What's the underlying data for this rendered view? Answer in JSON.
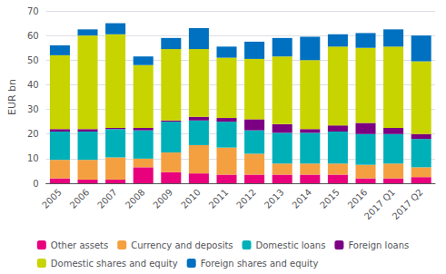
{
  "chart_data": {
    "type": "bar",
    "stacked": true,
    "categories": [
      "2005",
      "2006",
      "2007",
      "2008",
      "2009",
      "2010",
      "2011",
      "2012",
      "2013",
      "2014",
      "2015",
      "2016",
      "2017 Q1",
      "2017 Q2"
    ],
    "series": [
      {
        "name": "Other assets",
        "color": "#e8007d",
        "values": [
          2.0,
          1.5,
          1.5,
          6.5,
          4.5,
          4.0,
          3.5,
          3.5,
          3.5,
          3.5,
          3.5,
          2.0,
          2.0,
          2.5
        ]
      },
      {
        "name": "Currency and deposits",
        "color": "#f5a040",
        "values": [
          7.5,
          8.0,
          9.0,
          3.5,
          8.0,
          11.5,
          11.0,
          8.5,
          4.5,
          4.5,
          4.5,
          5.5,
          6.0,
          4.0
        ]
      },
      {
        "name": "Domestic loans",
        "color": "#00b0b9",
        "values": [
          11.5,
          11.5,
          11.5,
          11.5,
          12.5,
          10.0,
          10.5,
          9.5,
          12.5,
          12.5,
          13.0,
          12.5,
          12.0,
          11.5
        ]
      },
      {
        "name": "Foreign loans",
        "color": "#7b0082",
        "values": [
          1.0,
          1.0,
          0.5,
          1.0,
          0.5,
          1.5,
          1.5,
          4.5,
          3.5,
          1.5,
          2.5,
          4.5,
          2.5,
          2.0
        ]
      },
      {
        "name": "Domestic shares and equity",
        "color": "#c8d400",
        "values": [
          30.0,
          38.0,
          38.0,
          25.5,
          29.0,
          27.5,
          24.5,
          24.5,
          27.5,
          28.0,
          32.0,
          30.5,
          33.0,
          29.5
        ]
      },
      {
        "name": "Foreign shares and equity",
        "color": "#0070c0",
        "values": [
          4.0,
          2.5,
          4.5,
          3.5,
          4.5,
          8.5,
          4.5,
          7.0,
          7.5,
          9.5,
          5.0,
          6.0,
          7.0,
          10.5
        ]
      }
    ],
    "ylabel": "EUR bn",
    "ylim": [
      0,
      70
    ],
    "yticks": [
      0,
      10,
      20,
      30,
      40,
      50,
      60,
      70
    ],
    "grid": true,
    "legend": "bottom"
  }
}
